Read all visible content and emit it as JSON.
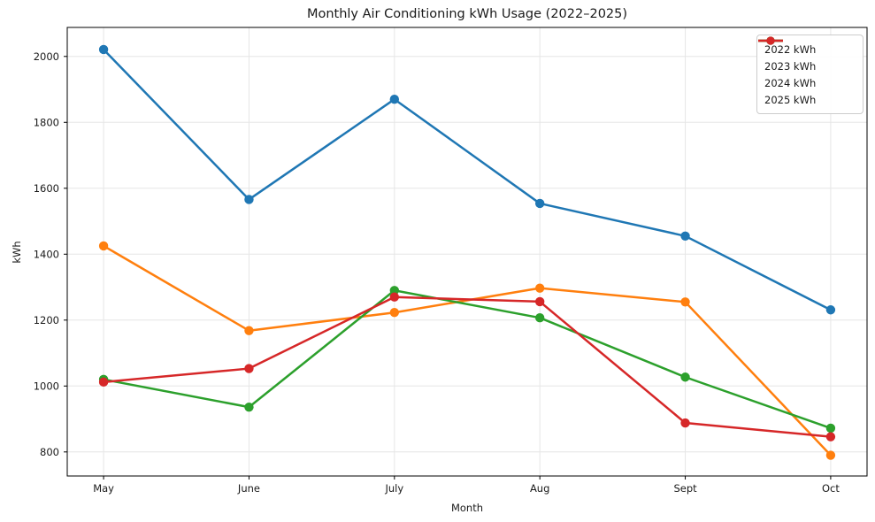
{
  "chart_data": {
    "type": "line",
    "title": "Monthly Air Conditioning kWh Usage (2022–2025)",
    "xlabel": "Month",
    "ylabel": "kWh",
    "categories": [
      "May",
      "June",
      "July",
      "Aug",
      "Sept",
      "Oct"
    ],
    "series": [
      {
        "name": "2022 kWh",
        "color": "#1f77b4",
        "values": [
          2021,
          1566,
          1870,
          1554,
          1455,
          1231
        ]
      },
      {
        "name": "2023 kWh",
        "color": "#ff7f0e",
        "values": [
          1425,
          1168,
          1223,
          1297,
          1255,
          790
        ]
      },
      {
        "name": "2024 kWh",
        "color": "#2ca02c",
        "values": [
          1020,
          936,
          1290,
          1207,
          1027,
          872
        ]
      },
      {
        "name": "2025 kWh",
        "color": "#d62728",
        "values": [
          1012,
          1053,
          1270,
          1256,
          888,
          846
        ]
      }
    ],
    "ylim": [
      727,
      2088
    ],
    "yticks": [
      800,
      1000,
      1200,
      1400,
      1600,
      1800,
      2000
    ],
    "grid": true,
    "legend_position": "upper right",
    "colors": {
      "spine": "#000000",
      "grid": "#e6e6e6",
      "tick_label": "#1a1a1a",
      "background": "#ffffff"
    }
  }
}
